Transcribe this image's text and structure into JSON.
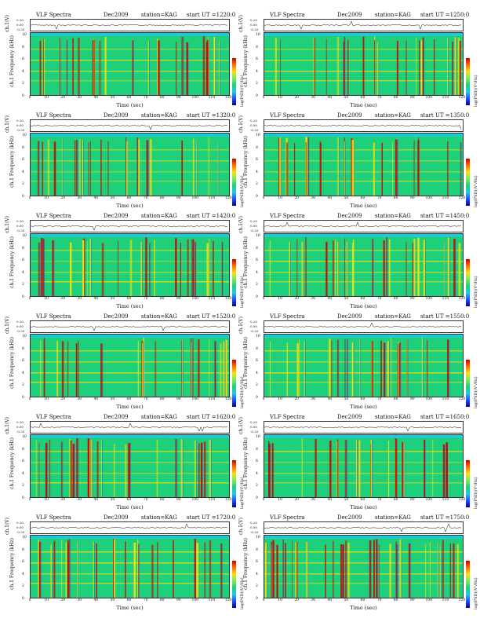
{
  "chart_data": [
    {
      "type": "heatmap",
      "title": "VLF Spectra",
      "date": "Dec2009",
      "station": "station=KAG",
      "start": "start UT =1220:0",
      "ch_label": "ch.1(V)",
      "ch_ticks": [
        "0.20",
        "0.00",
        "-0.20"
      ],
      "ylabel": "ch.1 Frequency (kHz)",
      "yticks": [
        "10",
        "8",
        "6",
        "4",
        "2",
        "0"
      ],
      "xticks": [
        "0",
        "10",
        "20",
        "30",
        "40",
        "50",
        "60",
        "70",
        "80",
        "90",
        "100",
        "110",
        "120"
      ],
      "xlabel": "Time (sec)",
      "colorbar_label": "log(PSD)(V²/Hz)",
      "ylim": [
        0,
        10
      ],
      "xlim": [
        0,
        120
      ]
    },
    {
      "type": "heatmap",
      "title": "VLF Spectra",
      "date": "Dec2009",
      "station": "station=KAG",
      "start": "start UT =1250:0",
      "ch_label": "ch.1(V)",
      "ch_ticks": [
        "0.20",
        "0.00",
        "-0.20"
      ],
      "ylabel": "ch.1 Frequency (kHz)",
      "yticks": [
        "10",
        "8",
        "6",
        "4",
        "2",
        "0"
      ],
      "xticks": [
        "0",
        "10",
        "20",
        "30",
        "40",
        "50",
        "60",
        "70",
        "80",
        "90",
        "100",
        "110",
        "120"
      ],
      "xlabel": "Time (sec)",
      "colorbar_label": "log(PSD)(V²/Hz)",
      "ylim": [
        0,
        10
      ],
      "xlim": [
        0,
        120
      ]
    },
    {
      "type": "heatmap",
      "title": "VLF Spectra",
      "date": "Dec2009",
      "station": "station=KAG",
      "start": "start UT =1320:0",
      "ch_label": "ch.1(V)",
      "ch_ticks": [
        "0.20",
        "0.00",
        "-0.20"
      ],
      "ylabel": "ch.1 Frequency (kHz)",
      "yticks": [
        "10",
        "8",
        "6",
        "4",
        "2",
        "0"
      ],
      "xticks": [
        "0",
        "10",
        "20",
        "30",
        "40",
        "50",
        "60",
        "70",
        "80",
        "90",
        "100",
        "110",
        "120"
      ],
      "xlabel": "Time (sec)",
      "colorbar_label": "log(PSD)(V²/Hz)",
      "ylim": [
        0,
        10
      ],
      "xlim": [
        0,
        120
      ]
    },
    {
      "type": "heatmap",
      "title": "VLF Spectra",
      "date": "Dec2009",
      "station": "station=KAG",
      "start": "start UT =1350:0",
      "ch_label": "ch.1(V)",
      "ch_ticks": [
        "0.20",
        "0.00",
        "-0.20"
      ],
      "ylabel": "ch.1 Frequency (kHz)",
      "yticks": [
        "10",
        "8",
        "6",
        "4",
        "2",
        "0"
      ],
      "xticks": [
        "0",
        "10",
        "20",
        "30",
        "40",
        "50",
        "60",
        "70",
        "80",
        "90",
        "100",
        "110",
        "120"
      ],
      "xlabel": "Time (sec)",
      "colorbar_label": "log(PSD)(V²/Hz)",
      "ylim": [
        0,
        10
      ],
      "xlim": [
        0,
        120
      ]
    },
    {
      "type": "heatmap",
      "title": "VLF Spectra",
      "date": "Dec2009",
      "station": "station=KAG",
      "start": "start UT =1420:0",
      "ch_label": "ch.1(V)",
      "ch_ticks": [
        "0.20",
        "0.00",
        "-0.20"
      ],
      "ylabel": "ch.1 Frequency (kHz)",
      "yticks": [
        "10",
        "8",
        "6",
        "4",
        "2",
        "0"
      ],
      "xticks": [
        "0",
        "10",
        "20",
        "30",
        "40",
        "50",
        "60",
        "70",
        "80",
        "90",
        "100",
        "110",
        "120"
      ],
      "xlabel": "Time (sec)",
      "colorbar_label": "log(PSD)(V²/Hz)",
      "ylim": [
        0,
        10
      ],
      "xlim": [
        0,
        120
      ]
    },
    {
      "type": "heatmap",
      "title": "VLF Spectra",
      "date": "Dec2009",
      "station": "station=KAG",
      "start": "start UT =1450:0",
      "ch_label": "ch.1(V)",
      "ch_ticks": [
        "0.20",
        "0.00",
        "-0.20"
      ],
      "ylabel": "ch.1 Frequency (kHz)",
      "yticks": [
        "10",
        "8",
        "6",
        "4",
        "2",
        "0"
      ],
      "xticks": [
        "0",
        "10",
        "20",
        "30",
        "40",
        "50",
        "60",
        "70",
        "80",
        "90",
        "100",
        "110",
        "120"
      ],
      "xlabel": "Time (sec)",
      "colorbar_label": "log(PSD)(V²/Hz)",
      "ylim": [
        0,
        10
      ],
      "xlim": [
        0,
        120
      ]
    },
    {
      "type": "heatmap",
      "title": "VLF Spectra",
      "date": "Dec2009",
      "station": "station=KAG",
      "start": "start UT =1520:0",
      "ch_label": "ch.1(V)",
      "ch_ticks": [
        "0.20",
        "0.00",
        "-0.20"
      ],
      "ylabel": "ch.1 Frequency (kHz)",
      "yticks": [
        "10",
        "8",
        "6",
        "4",
        "2",
        "0"
      ],
      "xticks": [
        "0",
        "10",
        "20",
        "30",
        "40",
        "50",
        "60",
        "70",
        "80",
        "90",
        "100",
        "110",
        "120"
      ],
      "xlabel": "Time (sec)",
      "colorbar_label": "log(PSD)(V²/Hz)",
      "ylim": [
        0,
        10
      ],
      "xlim": [
        0,
        120
      ]
    },
    {
      "type": "heatmap",
      "title": "VLF Spectra",
      "date": "Dec2009",
      "station": "station=KAG",
      "start": "start UT =1550:0",
      "ch_label": "ch.1(V)",
      "ch_ticks": [
        "0.20",
        "0.00",
        "-0.20"
      ],
      "ylabel": "ch.1 Frequency (kHz)",
      "yticks": [
        "10",
        "8",
        "6",
        "4",
        "2",
        "0"
      ],
      "xticks": [
        "0",
        "10",
        "20",
        "30",
        "40",
        "50",
        "60",
        "70",
        "80",
        "90",
        "100",
        "110",
        "120"
      ],
      "xlabel": "Time (sec)",
      "colorbar_label": "log(PSD)(V²/Hz)",
      "ylim": [
        0,
        10
      ],
      "xlim": [
        0,
        120
      ]
    },
    {
      "type": "heatmap",
      "title": "VLF Spectra",
      "date": "Dec2009",
      "station": "station=KAG",
      "start": "start UT =1620:0",
      "ch_label": "ch.1(V)",
      "ch_ticks": [
        "0.20",
        "0.00",
        "-0.20"
      ],
      "ylabel": "ch.1 Frequency (kHz)",
      "yticks": [
        "10",
        "8",
        "6",
        "4",
        "2",
        "0"
      ],
      "xticks": [
        "0",
        "10",
        "20",
        "30",
        "40",
        "50",
        "60",
        "70",
        "80",
        "90",
        "100",
        "110",
        "120"
      ],
      "xlabel": "Time (sec)",
      "colorbar_label": "log(PSD)(V²/Hz)",
      "ylim": [
        0,
        10
      ],
      "xlim": [
        0,
        120
      ]
    },
    {
      "type": "heatmap",
      "title": "VLF Spectra",
      "date": "Dec2009",
      "station": "station=KAG",
      "start": "start UT =1650:0",
      "ch_label": "ch.1(V)",
      "ch_ticks": [
        "0.20",
        "0.00",
        "-0.20"
      ],
      "ylabel": "ch.1 Frequency (kHz)",
      "yticks": [
        "10",
        "8",
        "6",
        "4",
        "2",
        "0"
      ],
      "xticks": [
        "0",
        "10",
        "20",
        "30",
        "40",
        "50",
        "60",
        "70",
        "80",
        "90",
        "100",
        "110",
        "120"
      ],
      "xlabel": "Time (sec)",
      "colorbar_label": "log(PSD)(V²/Hz)",
      "ylim": [
        0,
        10
      ],
      "xlim": [
        0,
        120
      ]
    },
    {
      "type": "heatmap",
      "title": "VLF Spectra",
      "date": "Dec2009",
      "station": "station=KAG",
      "start": "start UT =1720:0",
      "ch_label": "ch.1(V)",
      "ch_ticks": [
        "0.20",
        "0.00",
        "-0.20"
      ],
      "ylabel": "ch.1 Frequency (kHz)",
      "yticks": [
        "10",
        "8",
        "6",
        "4",
        "2",
        "0"
      ],
      "xticks": [
        "0",
        "10",
        "20",
        "30",
        "40",
        "50",
        "60",
        "70",
        "80",
        "90",
        "100",
        "110",
        "120"
      ],
      "xlabel": "Time (sec)",
      "colorbar_label": "log(PSD)(V²/Hz)",
      "ylim": [
        0,
        10
      ],
      "xlim": [
        0,
        120
      ]
    },
    {
      "type": "heatmap",
      "title": "VLF Spectra",
      "date": "Dec2009",
      "station": "station=KAG",
      "start": "start UT =1750:0",
      "ch_label": "ch.1(V)",
      "ch_ticks": [
        "0.20",
        "0.00",
        "-0.20"
      ],
      "ylabel": "ch.1 Frequency (kHz)",
      "yticks": [
        "10",
        "8",
        "6",
        "4",
        "2",
        "0"
      ],
      "xticks": [
        "0",
        "10",
        "20",
        "30",
        "40",
        "50",
        "60",
        "70",
        "80",
        "90",
        "100",
        "110",
        "120"
      ],
      "xlabel": "Time (sec)",
      "colorbar_label": "log(PSD)(V²/Hz)",
      "ylim": [
        0,
        10
      ],
      "xlim": [
        0,
        120
      ]
    }
  ],
  "colors": {
    "background": "#1fd07a",
    "band_low": "#20c8e8",
    "band_mid": "#ffe000",
    "band_high": "#cc0000"
  }
}
